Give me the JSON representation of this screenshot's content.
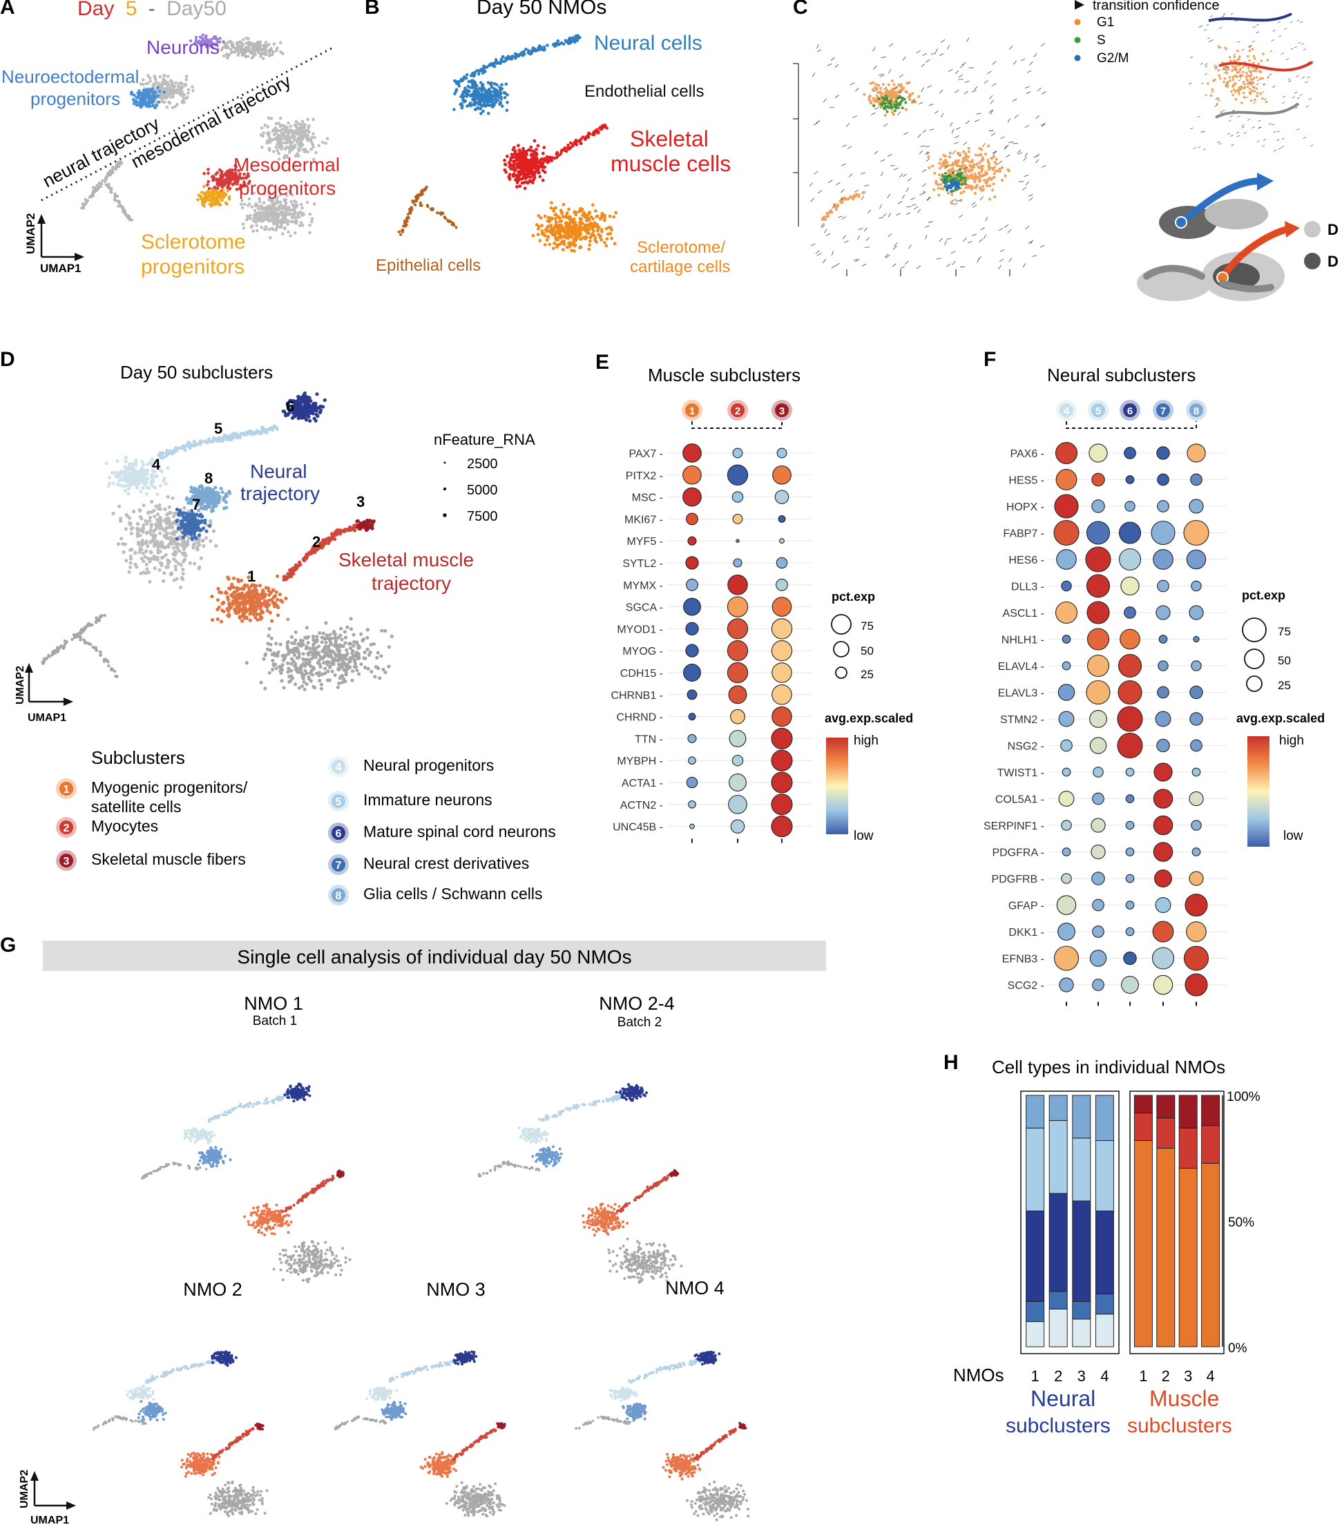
{
  "panels": {
    "A": {
      "letter": "A",
      "title_day5": "Day",
      "title_5": "5",
      "title_dash": "-",
      "title_day50": "Day50",
      "labels": {
        "neurons": "Neurons",
        "neuroecto1": "Neuroectodermal",
        "neuroecto2": "progenitors",
        "neural_traj": "neural trajectory",
        "meso_traj": "mesodermal trajectory",
        "meso1": "Mesodermal",
        "meso2": "progenitors",
        "sclero1": "Sclerotome",
        "sclero2": "progenitors"
      },
      "axis_y": "UMAP2",
      "axis_x": "UMAP1"
    },
    "B": {
      "letter": "B",
      "title": "Day 50 NMOs",
      "labels": {
        "neural": "Neural cells",
        "endothelial": "Endothelial cells",
        "skeletal1": "Skeletal",
        "skeletal2": "muscle cells",
        "epithelial": "Epithelial cells",
        "sclero1": "Sclerotome/",
        "sclero2": "cartilage cells"
      }
    },
    "C": {
      "letter": "C",
      "legend_title": "transition confidence",
      "legend": [
        "G1",
        "S",
        "G2/M"
      ],
      "legend_colors": [
        "#f08a2a",
        "#3e9a3e",
        "#2a6fb5"
      ],
      "right_labels": [
        "D",
        "D"
      ]
    },
    "D": {
      "letter": "D",
      "title": "Day 50 subclusters",
      "size_title": "nFeature_RNA",
      "size_values": [
        "2500",
        "5000",
        "7500"
      ],
      "neural_label1": "Neural",
      "neural_label2": "trajectory",
      "muscle_label1": "Skeletal muscle",
      "muscle_label2": "trajectory",
      "cluster_numbers": [
        "1",
        "2",
        "3",
        "4",
        "5",
        "6",
        "7",
        "8"
      ],
      "axis_y": "UMAP2",
      "axis_x": "UMAP1",
      "subclusters_title": "Subclusters",
      "legend_left": [
        {
          "num": "1",
          "label": "Myogenic progenitors/",
          "label2": "satellite cells",
          "color": "#e8772e"
        },
        {
          "num": "2",
          "label": "Myocytes",
          "label2": "",
          "color": "#cc3a32"
        },
        {
          "num": "3",
          "label": "Skeletal muscle fibers",
          "label2": "",
          "color": "#9b1b24"
        }
      ],
      "legend_right": [
        {
          "num": "4",
          "label": "Neural progenitors",
          "color": "#c9dfe9"
        },
        {
          "num": "5",
          "label": "Immature neurons",
          "color": "#a8cde6"
        },
        {
          "num": "6",
          "label": "Mature spinal cord neurons",
          "color": "#2a3a8f"
        },
        {
          "num": "7",
          "label": "Neural crest derivatives",
          "color": "#3f6fb0"
        },
        {
          "num": "8",
          "label": "Glia cells / Schwann cells",
          "color": "#7ba9d4"
        }
      ]
    },
    "E": {
      "letter": "E",
      "title": "Muscle subclusters",
      "clusters": [
        "1",
        "2",
        "3"
      ],
      "cluster_colors": [
        "#e8772e",
        "#cc3a32",
        "#9b1b24"
      ],
      "genes": [
        "PAX7",
        "PITX2",
        "MSC",
        "MKI67",
        "MYF5",
        "SYTL2",
        "MYMX",
        "SGCA",
        "MYOD1",
        "MYOG",
        "CDH15",
        "CHRNB1",
        "CHRND",
        "TTN",
        "MYBPH",
        "ACTA1",
        "ACTN2",
        "UNC45B"
      ],
      "pct_title": "pct.exp",
      "pct_values": [
        "75",
        "50",
        "25"
      ],
      "avg_title": "avg.exp.scaled",
      "high": "high",
      "low": "low"
    },
    "F": {
      "letter": "F",
      "title": "Neural subclusters",
      "clusters": [
        "4",
        "5",
        "6",
        "7",
        "8"
      ],
      "cluster_colors": [
        "#c9dfe9",
        "#a8cde6",
        "#2a3a8f",
        "#3f6fb0",
        "#7ba9d4"
      ],
      "genes": [
        "PAX6",
        "HES5",
        "HOPX",
        "FABP7",
        "HES6",
        "DLL3",
        "ASCL1",
        "NHLH1",
        "ELAVL4",
        "ELAVL3",
        "STMN2",
        "NSG2",
        "TWIST1",
        "COL5A1",
        "SERPINF1",
        "PDGFRA",
        "PDGFRB",
        "GFAP",
        "DKK1",
        "EFNB3",
        "SCG2"
      ],
      "pct_title": "pct.exp",
      "pct_values": [
        "75",
        "50",
        "25"
      ],
      "avg_title": "avg.exp.scaled",
      "high": "high",
      "low": "low"
    },
    "G": {
      "letter": "G",
      "banner": "Single cell analysis of individual day 50 NMOs",
      "plots": [
        {
          "title": "NMO 1",
          "subtitle": "Batch 1"
        },
        {
          "title": "NMO 2-4",
          "subtitle": "Batch 2"
        },
        {
          "title": "NMO 2",
          "subtitle": ""
        },
        {
          "title": "NMO 3",
          "subtitle": ""
        },
        {
          "title": "NMO 4",
          "subtitle": ""
        }
      ],
      "axis_y": "UMAP2",
      "axis_x": "UMAP1"
    },
    "H": {
      "letter": "H",
      "title": "Cell types in individual NMOs",
      "y_ticks": [
        "100%",
        "50%",
        "0%"
      ],
      "x_label": "NMOs",
      "neural_label1": "Neural",
      "neural_label2": "subclusters",
      "muscle_label1": "Muscle",
      "muscle_label2": "subclusters"
    }
  },
  "chart_data": [
    {
      "type": "scatter",
      "title": "Muscle subclusters",
      "subtype": "dotplot",
      "categories": [
        "1",
        "2",
        "3"
      ],
      "genes": [
        "PAX7",
        "PITX2",
        "MSC",
        "MKI67",
        "MYF5",
        "SYTL2",
        "MYMX",
        "SGCA",
        "MYOD1",
        "MYOG",
        "CDH15",
        "CHRNB1",
        "CHRND",
        "TTN",
        "MYBPH",
        "ACTA1",
        "ACTN2",
        "UNC45B"
      ],
      "pct_exp": [
        [
          75,
          20,
          20
        ],
        [
          75,
          90,
          75
        ],
        [
          75,
          25,
          40
        ],
        [
          30,
          20,
          10
        ],
        [
          15,
          2,
          5
        ],
        [
          35,
          15,
          25
        ],
        [
          30,
          85,
          30
        ],
        [
          65,
          90,
          80
        ],
        [
          35,
          90,
          90
        ],
        [
          35,
          90,
          90
        ],
        [
          65,
          90,
          85
        ],
        [
          20,
          70,
          85
        ],
        [
          10,
          45,
          85
        ],
        [
          15,
          60,
          95
        ],
        [
          12,
          25,
          95
        ],
        [
          25,
          65,
          95
        ],
        [
          12,
          75,
          95
        ],
        [
          5,
          40,
          95
        ]
      ],
      "avg_exp_scaled": [
        [
          1.0,
          -0.5,
          -0.5
        ],
        [
          0.6,
          -1.0,
          0.6
        ],
        [
          1.0,
          -0.5,
          -0.4
        ],
        [
          0.8,
          0.2,
          -1.0
        ],
        [
          1.0,
          -0.8,
          -0.4
        ],
        [
          1.0,
          -0.6,
          -0.6
        ],
        [
          -0.6,
          1.0,
          -0.4
        ],
        [
          -1.0,
          0.4,
          0.6
        ],
        [
          -1.0,
          0.8,
          0.2
        ],
        [
          -1.0,
          0.8,
          0.2
        ],
        [
          -1.0,
          0.8,
          0.2
        ],
        [
          -1.0,
          0.8,
          0.2
        ],
        [
          -1.0,
          0.2,
          0.8
        ],
        [
          -0.6,
          -0.3,
          1.0
        ],
        [
          -0.5,
          -0.4,
          1.0
        ],
        [
          -0.7,
          -0.3,
          1.0
        ],
        [
          -0.5,
          -0.4,
          1.0
        ],
        [
          -0.5,
          -0.4,
          1.0
        ]
      ],
      "pct_range": [
        0,
        75
      ],
      "color_range": [
        "low",
        "high"
      ]
    },
    {
      "type": "scatter",
      "title": "Neural subclusters",
      "subtype": "dotplot",
      "categories": [
        "4",
        "5",
        "6",
        "7",
        "8"
      ],
      "genes": [
        "PAX6",
        "HES5",
        "HOPX",
        "FABP7",
        "HES6",
        "DLL3",
        "ASCL1",
        "NHLH1",
        "ELAVL4",
        "ELAVL3",
        "STMN2",
        "NSG2",
        "TWIST1",
        "COL5A1",
        "SERPINF1",
        "PDGFRA",
        "PDGFRB",
        "GFAP",
        "DKK1",
        "EFNB3",
        "SCG2"
      ],
      "pct_exp": [
        [
          70,
          50,
          20,
          25,
          50
        ],
        [
          65,
          25,
          10,
          20,
          20
        ],
        [
          85,
          25,
          15,
          20,
          30
        ],
        [
          95,
          80,
          70,
          85,
          95
        ],
        [
          60,
          95,
          70,
          60,
          55
        ],
        [
          15,
          80,
          50,
          20,
          15
        ],
        [
          70,
          75,
          20,
          30,
          30
        ],
        [
          10,
          70,
          60,
          10,
          5
        ],
        [
          10,
          70,
          80,
          15,
          15
        ],
        [
          40,
          85,
          85,
          20,
          25
        ],
        [
          35,
          45,
          95,
          35,
          25
        ],
        [
          20,
          40,
          95,
          25,
          20
        ],
        [
          10,
          15,
          10,
          50,
          10
        ],
        [
          35,
          20,
          10,
          55,
          30
        ],
        [
          15,
          30,
          10,
          55,
          15
        ],
        [
          10,
          30,
          10,
          55,
          10
        ],
        [
          15,
          25,
          10,
          45,
          30
        ],
        [
          55,
          20,
          10,
          35,
          75
        ],
        [
          45,
          20,
          10,
          65,
          60
        ],
        [
          90,
          40,
          25,
          70,
          90
        ],
        [
          30,
          20,
          45,
          55,
          75
        ]
      ],
      "avg_exp_scaled": [
        [
          0.9,
          -0.1,
          -1.0,
          -1.0,
          0.3
        ],
        [
          0.6,
          0.8,
          -1.0,
          -1.0,
          -0.8
        ],
        [
          1.0,
          -0.6,
          -0.6,
          -0.6,
          -0.6
        ],
        [
          0.8,
          -0.9,
          -1.0,
          -0.6,
          0.3
        ],
        [
          -0.6,
          1.0,
          -0.4,
          -0.7,
          -0.7
        ],
        [
          -0.9,
          1.0,
          -0.1,
          -0.6,
          -0.6
        ],
        [
          0.3,
          1.0,
          -0.9,
          -0.6,
          -0.6
        ],
        [
          -0.8,
          0.7,
          0.6,
          -0.8,
          -0.8
        ],
        [
          -0.6,
          0.3,
          0.9,
          -0.7,
          -0.6
        ],
        [
          -0.7,
          0.3,
          0.9,
          -0.8,
          -0.8
        ],
        [
          -0.6,
          -0.2,
          1.0,
          -0.7,
          -0.7
        ],
        [
          -0.5,
          -0.2,
          1.0,
          -0.7,
          -0.7
        ],
        [
          -0.5,
          -0.5,
          -0.5,
          1.0,
          -0.5
        ],
        [
          -0.1,
          -0.6,
          -0.8,
          1.0,
          -0.2
        ],
        [
          -0.4,
          -0.2,
          -0.6,
          1.0,
          -0.6
        ],
        [
          -0.6,
          -0.2,
          -0.6,
          1.0,
          -0.6
        ],
        [
          -0.3,
          -0.6,
          -0.6,
          1.0,
          0.3
        ],
        [
          -0.2,
          -0.6,
          -0.6,
          -0.5,
          1.0
        ],
        [
          -0.6,
          -0.6,
          -0.6,
          0.8,
          0.3
        ],
        [
          0.3,
          -0.6,
          -1.0,
          -0.4,
          0.9
        ],
        [
          -0.6,
          -0.6,
          -0.3,
          -0.1,
          1.0
        ]
      ],
      "pct_range": [
        0,
        75
      ],
      "color_range": [
        "low",
        "high"
      ]
    },
    {
      "type": "bar",
      "title": "Cell types in individual NMOs",
      "subtype": "stacked_percent",
      "groups": [
        {
          "name": "Neural subclusters",
          "categories": [
            "1",
            "2",
            "3",
            "4"
          ],
          "series": [
            {
              "cluster": "4",
              "color": "#dcebf2",
              "values": [
                10,
                15,
                11,
                13
              ]
            },
            {
              "cluster": "7",
              "color": "#3f6fb0",
              "values": [
                8,
                7,
                7,
                8
              ]
            },
            {
              "cluster": "6",
              "color": "#2a3a8f",
              "values": [
                36,
                39,
                40,
                33
              ]
            },
            {
              "cluster": "5",
              "color": "#a8cde6",
              "values": [
                33,
                29,
                25,
                28
              ]
            },
            {
              "cluster": "8",
              "color": "#7ba9d4",
              "values": [
                13,
                10,
                17,
                18
              ]
            }
          ]
        },
        {
          "name": "Muscle subclusters",
          "categories": [
            "1",
            "2",
            "3",
            "4"
          ],
          "series": [
            {
              "cluster": "1",
              "color": "#e8772e",
              "values": [
                82,
                79,
                71,
                73
              ]
            },
            {
              "cluster": "2",
              "color": "#cc3a32",
              "values": [
                11,
                12,
                16,
                15
              ]
            },
            {
              "cluster": "3",
              "color": "#9b1b24",
              "values": [
                7,
                9,
                13,
                12
              ]
            }
          ]
        }
      ],
      "ylim": [
        0,
        100
      ]
    }
  ]
}
